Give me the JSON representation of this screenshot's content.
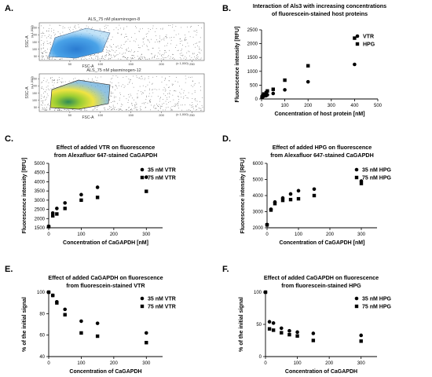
{
  "panel_letters": {
    "A": "A.",
    "B": "B.",
    "C": "C.",
    "D": "D.",
    "E": "E.",
    "F": "F."
  },
  "flow": {
    "top_title": "ALS_75 nM plasminogen-8",
    "bottom_title": "ALS_75 nM plasminogen-12",
    "ylabel": "SSC-A",
    "xlabel": "FSC-A",
    "x_ticks": [
      "50",
      "100",
      "150",
      "200",
      "250"
    ],
    "y_ticks": [
      "50",
      "100",
      "150",
      "200",
      "250"
    ],
    "unit_y": "(x 1,000)",
    "unit_x": "(x 1,000)"
  },
  "chart_data": [
    {
      "id": "B",
      "type": "scatter",
      "title": [
        "Interaction of Als3 with increasing concentrations",
        "of fluorescein-stained host proteins"
      ],
      "xlabel": "Concentration of host protein [nM]",
      "ylabel": "Fluorescence intensity [RFU]",
      "xlim": [
        0,
        500
      ],
      "ylim": [
        0,
        2500
      ],
      "xticks": [
        0,
        100,
        200,
        300,
        400,
        500
      ],
      "yticks": [
        0,
        500,
        1000,
        1500,
        2000,
        2500
      ],
      "legend_position": "top-right",
      "series": [
        {
          "name": "VTR",
          "marker": "circle",
          "x": [
            2,
            5,
            10,
            20,
            25,
            50,
            100,
            200,
            400
          ],
          "y": [
            50,
            80,
            100,
            120,
            150,
            200,
            330,
            620,
            1250
          ]
        },
        {
          "name": "HPG",
          "marker": "square",
          "x": [
            2,
            5,
            10,
            20,
            25,
            50,
            100,
            200,
            400
          ],
          "y": [
            70,
            120,
            180,
            230,
            290,
            350,
            680,
            1200,
            2200
          ]
        }
      ]
    },
    {
      "id": "C",
      "type": "scatter",
      "title": [
        "Effect of added VTR on fluorescence",
        "from Alexafluor 647-stained CaGAPDH"
      ],
      "xlabel": "Concentration of CaGAPDH [nM]",
      "ylabel": "Fluorescence intensity [RFU]",
      "xlim": [
        0,
        350
      ],
      "ylim": [
        1500,
        5000
      ],
      "xticks": [
        0,
        100,
        200,
        300
      ],
      "yticks": [
        1500,
        2000,
        2500,
        3000,
        3500,
        4000,
        4500,
        5000
      ],
      "legend_position": "top-right",
      "series": [
        {
          "name": "35 nM VTR",
          "marker": "circle",
          "x": [
            0,
            12.5,
            25,
            50,
            100,
            150,
            300
          ],
          "y": [
            1580,
            2300,
            2550,
            2850,
            3300,
            3700,
            4250
          ]
        },
        {
          "name": "75 nM VTR",
          "marker": "square",
          "x": [
            0,
            12.5,
            25,
            50,
            100,
            150,
            300
          ],
          "y": [
            1560,
            2150,
            2250,
            2550,
            3000,
            3150,
            3480
          ]
        }
      ]
    },
    {
      "id": "D",
      "type": "scatter",
      "title": [
        "Effect of added HPG on fluorescence",
        "from Alexafluor 647-stained CaGAPDH"
      ],
      "xlabel": "Concentration of CaGAPDH [nM]",
      "ylabel": "Fluorescence intensity [RFU]",
      "xlim": [
        0,
        350
      ],
      "ylim": [
        2000,
        6000
      ],
      "xticks": [
        0,
        100,
        200,
        300
      ],
      "yticks": [
        2000,
        3000,
        4000,
        5000,
        6000
      ],
      "legend_position": "top-right",
      "series": [
        {
          "name": "35 nM HPG",
          "marker": "circle",
          "x": [
            0,
            12.5,
            25,
            50,
            75,
            100,
            150,
            300
          ],
          "y": [
            2200,
            3150,
            3600,
            3850,
            4100,
            4300,
            4400,
            4900
          ]
        },
        {
          "name": "75 nM HPG",
          "marker": "square",
          "x": [
            0,
            12.5,
            25,
            50,
            75,
            100,
            150,
            300
          ],
          "y": [
            2180,
            3100,
            3500,
            3700,
            3750,
            3800,
            4000,
            4750
          ]
        }
      ]
    },
    {
      "id": "E",
      "type": "scatter",
      "title": [
        "Effect of added CaGAPDH on fluorescence",
        "from fluorescein-stained VTR"
      ],
      "xlabel": "Concentration of CaGAPDH",
      "ylabel": "% of the initial signal",
      "xlim": [
        0,
        350
      ],
      "ylim": [
        40,
        100
      ],
      "xticks": [
        0,
        100,
        200,
        300
      ],
      "yticks": [
        40,
        60,
        80,
        100
      ],
      "legend_position": "top-right",
      "series": [
        {
          "name": "35 nM VTR",
          "marker": "circle",
          "x": [
            0,
            12.5,
            25,
            50,
            100,
            150,
            300
          ],
          "y": [
            100,
            97,
            91,
            84,
            73,
            71,
            62
          ]
        },
        {
          "name": "75 nM VTR",
          "marker": "square",
          "x": [
            0,
            12.5,
            25,
            50,
            100,
            150,
            300
          ],
          "y": [
            100,
            97,
            90,
            79,
            62,
            59,
            53
          ]
        }
      ]
    },
    {
      "id": "F",
      "type": "scatter",
      "title": [
        "Effect of added CaGAPDH on fluorescence",
        "from fluorescein-stained HPG"
      ],
      "xlabel": "Concentration of CaGAPDH",
      "ylabel": "% of the initial signal",
      "xlim": [
        0,
        350
      ],
      "ylim": [
        0,
        100
      ],
      "xticks": [
        0,
        100,
        200,
        300
      ],
      "yticks": [
        0,
        50,
        100
      ],
      "legend_position": "top-right",
      "series": [
        {
          "name": "35 nM HPG",
          "marker": "circle",
          "x": [
            0,
            12.5,
            25,
            50,
            75,
            100,
            150,
            300
          ],
          "y": [
            100,
            54,
            52,
            44,
            40,
            38,
            36,
            33
          ]
        },
        {
          "name": "75 nM HPG",
          "marker": "square",
          "x": [
            0,
            12.5,
            25,
            50,
            75,
            100,
            150,
            300
          ],
          "y": [
            100,
            43,
            41,
            37,
            34,
            32,
            25,
            24
          ]
        }
      ]
    }
  ]
}
